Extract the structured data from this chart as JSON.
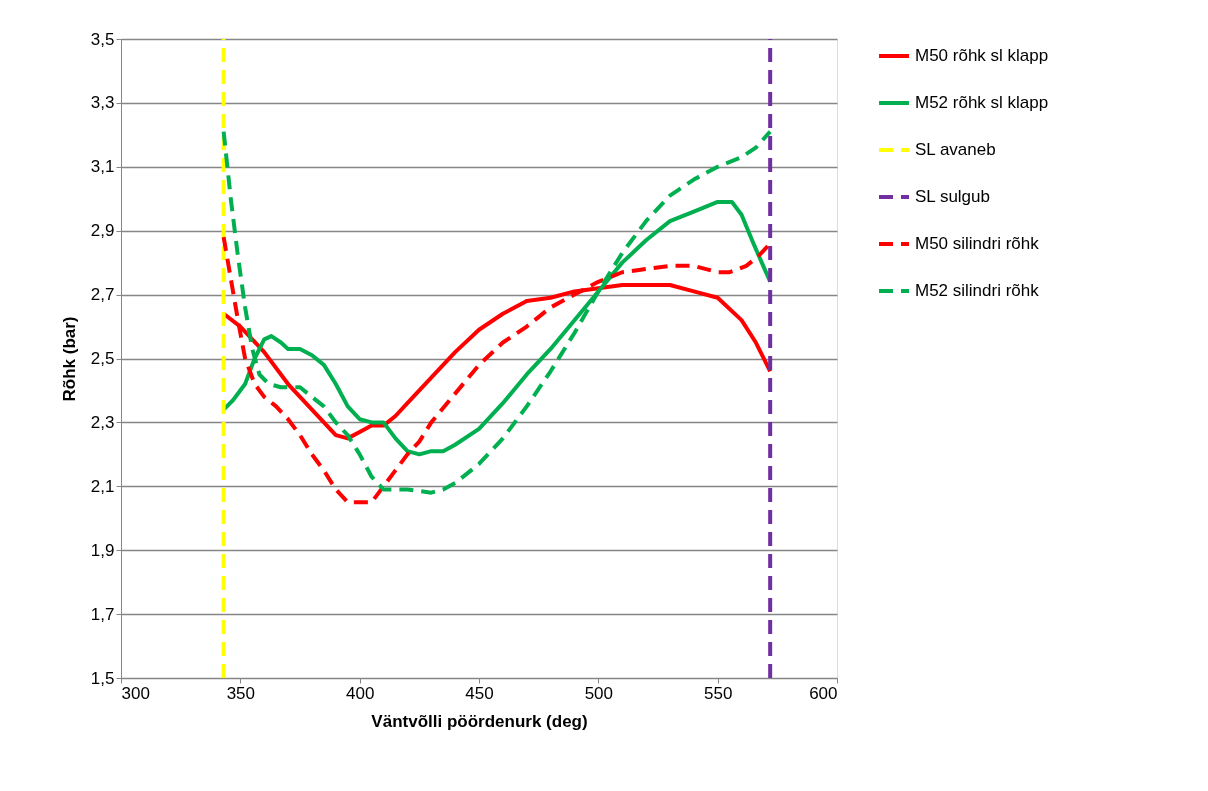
{
  "chart_data": {
    "type": "line",
    "xlabel": "Väntvõlli pöördenurk (deg)",
    "ylabel": "Rõhk (bar)",
    "xlim": [
      300,
      600
    ],
    "xticks": [
      300,
      350,
      400,
      450,
      500,
      550,
      600
    ],
    "ylim": [
      1.5,
      3.5
    ],
    "yticks": [
      {
        "value": 1.5,
        "label": "1,5"
      },
      {
        "value": 1.7,
        "label": "1,7"
      },
      {
        "value": 1.9,
        "label": "1,9"
      },
      {
        "value": 2.1,
        "label": "2,1"
      },
      {
        "value": 2.3,
        "label": "2,3"
      },
      {
        "value": 2.5,
        "label": "2,5"
      },
      {
        "value": 2.7,
        "label": "2,7"
      },
      {
        "value": 2.9,
        "label": "2,9"
      },
      {
        "value": 3.1,
        "label": "3,1"
      },
      {
        "value": 3.3,
        "label": "3,3"
      },
      {
        "value": 3.5,
        "label": "3,5"
      }
    ],
    "grid": "y",
    "legend": "right",
    "marker": "none",
    "series": [
      {
        "name": "M50 rõhk sl klapp",
        "color": "#ff0000",
        "line_style": "solid",
        "x": [
          343,
          350,
          360,
          370,
          380,
          390,
          395,
          400,
          405,
          410,
          415,
          420,
          430,
          440,
          450,
          460,
          470,
          480,
          490,
          500,
          510,
          520,
          530,
          540,
          550,
          560,
          566,
          572
        ],
        "values": [
          2.64,
          2.6,
          2.52,
          2.42,
          2.34,
          2.26,
          2.25,
          2.27,
          2.29,
          2.29,
          2.32,
          2.36,
          2.44,
          2.52,
          2.59,
          2.64,
          2.68,
          2.69,
          2.71,
          2.72,
          2.73,
          2.73,
          2.73,
          2.71,
          2.69,
          2.62,
          2.55,
          2.46
        ]
      },
      {
        "name": "M52 rõhk sl klapp",
        "color": "#00b050",
        "line_style": "solid",
        "x": [
          343,
          347,
          352,
          356,
          360,
          363,
          367,
          370,
          375,
          380,
          385,
          390,
          395,
          400,
          405,
          410,
          415,
          420,
          425,
          430,
          435,
          440,
          450,
          460,
          470,
          480,
          490,
          500,
          510,
          520,
          530,
          540,
          550,
          556,
          560,
          565,
          572
        ],
        "values": [
          2.34,
          2.37,
          2.42,
          2.5,
          2.56,
          2.57,
          2.55,
          2.53,
          2.53,
          2.51,
          2.48,
          2.42,
          2.35,
          2.31,
          2.3,
          2.3,
          2.25,
          2.21,
          2.2,
          2.21,
          2.21,
          2.23,
          2.28,
          2.36,
          2.45,
          2.53,
          2.62,
          2.71,
          2.8,
          2.87,
          2.93,
          2.96,
          2.99,
          2.99,
          2.95,
          2.86,
          2.74
        ]
      },
      {
        "name": "SL avaneb",
        "color": "#ffff00",
        "line_style": "dashed",
        "x": [
          343,
          343
        ],
        "values": [
          1.5,
          3.5
        ]
      },
      {
        "name": "SL sulgub",
        "color": "#7030a0",
        "line_style": "dashed",
        "x": [
          572,
          572
        ],
        "values": [
          1.5,
          3.5
        ]
      },
      {
        "name": "M50 silindri rõhk",
        "color": "#ff0000",
        "line_style": "dashed",
        "x": [
          343,
          346,
          349,
          352,
          356,
          360,
          365,
          370,
          375,
          380,
          385,
          390,
          395,
          400,
          405,
          410,
          415,
          420,
          425,
          430,
          440,
          450,
          460,
          470,
          480,
          490,
          500,
          510,
          520,
          530,
          540,
          550,
          555,
          562,
          567,
          572
        ],
        "values": [
          2.88,
          2.75,
          2.62,
          2.5,
          2.42,
          2.38,
          2.35,
          2.31,
          2.26,
          2.2,
          2.15,
          2.09,
          2.05,
          2.05,
          2.05,
          2.1,
          2.15,
          2.2,
          2.24,
          2.3,
          2.39,
          2.48,
          2.55,
          2.6,
          2.66,
          2.7,
          2.74,
          2.77,
          2.78,
          2.79,
          2.79,
          2.77,
          2.77,
          2.79,
          2.82,
          2.86
        ]
      },
      {
        "name": "M52 silindri rõhk",
        "color": "#00b050",
        "line_style": "dashed",
        "x": [
          343,
          346,
          349,
          352,
          355,
          358,
          362,
          367,
          375,
          380,
          385,
          390,
          395,
          400,
          405,
          410,
          420,
          430,
          435,
          440,
          450,
          460,
          470,
          480,
          490,
          500,
          510,
          520,
          530,
          540,
          550,
          560,
          566,
          572
        ],
        "values": [
          3.21,
          3.0,
          2.82,
          2.66,
          2.53,
          2.45,
          2.42,
          2.41,
          2.41,
          2.38,
          2.35,
          2.3,
          2.26,
          2.2,
          2.13,
          2.09,
          2.09,
          2.08,
          2.09,
          2.11,
          2.17,
          2.25,
          2.35,
          2.46,
          2.58,
          2.71,
          2.83,
          2.93,
          3.01,
          3.06,
          3.1,
          3.13,
          3.16,
          3.21
        ]
      }
    ]
  }
}
